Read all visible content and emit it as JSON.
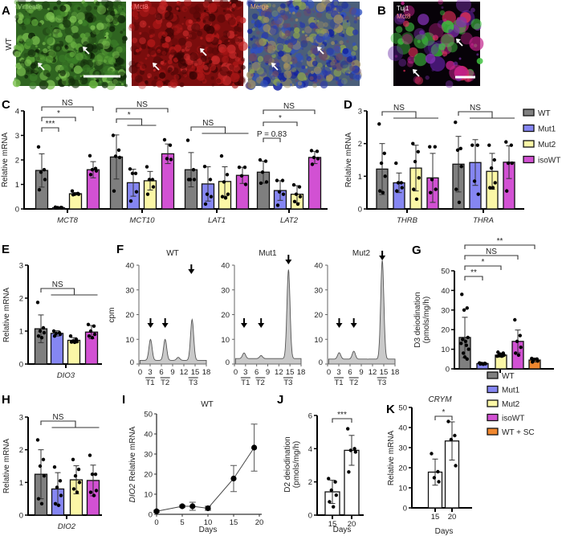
{
  "colors": {
    "WT": "#7f7f7f",
    "Mut1": "#8586f2",
    "Mut2": "#fbf7a6",
    "isoWT": "#d251d3",
    "WT + SC": "#f0872e"
  },
  "images": {
    "A": {
      "panel": "A",
      "row_label": "WT",
      "channels": [
        "Vimentin",
        "Mct8",
        "Merge"
      ]
    },
    "B": {
      "panel": "B",
      "channels": [
        "Tuj1",
        "Mct8"
      ]
    }
  },
  "chart_data": [
    {
      "panel": "C",
      "type": "bar",
      "ylabel": "Relative mRNA",
      "ylim": [
        0,
        4
      ],
      "yticks": [
        0,
        1,
        2,
        3,
        4
      ],
      "categories": [
        "MCT8",
        "MCT10",
        "LAT1",
        "LAT2"
      ],
      "series": [
        {
          "name": "WT",
          "values": [
            1.57,
            2.12,
            1.6,
            1.5
          ],
          "sd": [
            0.68,
            0.9,
            0.7,
            0.45
          ],
          "points": [
            [
              2.53,
              1.6,
              1.5,
              1.2,
              0.78
            ],
            [
              3.0,
              2.4,
              2.15,
              2.1,
              0.73
            ],
            [
              2.8,
              1.6,
              1.2,
              1.2,
              1.2
            ],
            [
              2.0,
              1.95,
              1.5,
              1.1,
              1.05
            ]
          ]
        },
        {
          "name": "Mut1",
          "values": [
            0.05,
            1.07,
            1.02,
            0.75
          ],
          "sd": [
            0.02,
            0.55,
            0.7,
            0.4
          ],
          "points": [
            [
              0.07,
              0.06,
              0.05,
              0.05,
              0.04
            ],
            [
              1.63,
              1.45,
              1.45,
              0.7,
              0.32
            ],
            [
              1.73,
              1.2,
              0.6,
              0.5,
              0.2
            ],
            [
              1.16,
              1.16,
              0.7,
              0.6,
              0.15
            ]
          ]
        },
        {
          "name": "Mut2",
          "values": [
            0.62,
            1.15,
            1.12,
            0.6
          ],
          "sd": [
            0.05,
            0.38,
            0.6,
            0.35
          ],
          "points": [
            [
              0.73,
              0.63,
              0.6,
              0.6,
              0.58
            ],
            [
              1.72,
              1.2,
              1.2,
              0.9,
              0.6
            ],
            [
              2.16,
              1.4,
              1.1,
              0.6,
              0.5,
              0.45
            ],
            [
              0.98,
              0.9,
              0.6,
              0.5,
              0.3,
              0.2
            ]
          ]
        },
        {
          "name": "isoWT",
          "values": [
            1.6,
            2.25,
            1.37,
            2.1
          ],
          "sd": [
            0.33,
            0.4,
            0.33,
            0.25
          ],
          "points": [
            [
              2.17,
              1.65,
              1.6,
              1.55,
              1.4
            ],
            [
              2.82,
              2.6,
              2.05,
              2.02
            ],
            [
              1.7,
              1.7,
              1.35,
              1.0
            ],
            [
              2.38,
              2.35,
              2.1,
              2.05,
              1.82
            ]
          ]
        }
      ],
      "comparisons": [
        {
          "category": "MCT8",
          "a": "WT",
          "b": [
            "Mut1"
          ],
          "label": "***"
        },
        {
          "category": "MCT8",
          "a": "WT",
          "b": [
            "Mut2"
          ],
          "label": "*"
        },
        {
          "category": "MCT8",
          "a": "WT",
          "b": [
            "isoWT"
          ],
          "label": "NS"
        },
        {
          "category": "MCT10",
          "a": "WT",
          "b": [
            "Mut1",
            "Mut2"
          ],
          "label": "*"
        },
        {
          "category": "MCT10",
          "a": "WT",
          "b": [
            "isoWT"
          ],
          "label": "NS"
        },
        {
          "category": "LAT1",
          "a": "WT",
          "b": [
            "Mut1",
            "Mut2",
            "isoWT"
          ],
          "label": "NS"
        },
        {
          "category": "LAT2",
          "a": "WT",
          "b": [
            "Mut1"
          ],
          "label": "P = 0.83"
        },
        {
          "category": "LAT2",
          "a": "WT",
          "b": [
            "Mut2"
          ],
          "label": "*"
        },
        {
          "category": "LAT2",
          "a": "WT",
          "b": [
            "isoWT"
          ],
          "label": "NS"
        }
      ]
    },
    {
      "panel": "D",
      "type": "bar",
      "ylabel": "Relative mRNA",
      "ylim": [
        0,
        3
      ],
      "yticks": [
        0,
        1,
        2,
        3
      ],
      "categories": [
        "THRB",
        "THRA"
      ],
      "legend": [
        "WT",
        "Mut1",
        "Mut2",
        "isoWT"
      ],
      "legend_position": "right",
      "series": [
        {
          "name": "WT",
          "values": [
            1.22,
            1.37
          ],
          "sd": [
            0.78,
            0.85
          ],
          "points": [
            [
              2.6,
              1.7,
              1.4,
              1.0,
              0.55,
              0.5
            ],
            [
              2.65,
              1.85,
              1.8,
              1.3,
              0.6,
              0.2
            ]
          ]
        },
        {
          "name": "Mut1",
          "values": [
            0.8,
            1.42
          ],
          "sd": [
            0.3,
            0.7
          ],
          "points": [
            [
              1.4,
              0.8,
              0.8,
              0.65,
              0.55
            ],
            [
              1.95,
              1.95,
              0.85,
              0.45
            ]
          ]
        },
        {
          "name": "Mut2",
          "values": [
            1.25,
            1.15
          ],
          "sd": [
            0.7,
            0.55
          ],
          "points": [
            [
              2.0,
              1.75,
              1.45,
              0.95,
              0.6,
              0.3
            ],
            [
              1.95,
              1.5,
              1.25,
              0.8,
              0.65,
              0.65
            ]
          ]
        },
        {
          "name": "isoWT",
          "values": [
            0.95,
            1.43
          ],
          "sd": [
            0.75,
            0.5
          ],
          "points": [
            [
              1.9,
              1.9,
              0.9,
              0.6,
              0.5
            ],
            [
              2.05,
              1.95,
              1.4,
              1.4,
              0.55
            ]
          ]
        }
      ],
      "comparisons": [
        {
          "category": "THRB",
          "a": "WT",
          "b": [
            "Mut1",
            "Mut2",
            "isoWT"
          ],
          "label": "NS"
        },
        {
          "category": "THRA",
          "a": "WT",
          "b": [
            "Mut1",
            "Mut2",
            "isoWT"
          ],
          "label": "NS"
        }
      ]
    },
    {
      "panel": "E",
      "type": "bar",
      "ylabel": "Relative mRNA",
      "ylim": [
        0,
        3
      ],
      "yticks": [
        0,
        1,
        2,
        3
      ],
      "categories": [
        "DIO3"
      ],
      "series": [
        {
          "name": "WT",
          "values": [
            1.07
          ],
          "sd": [
            0.42
          ],
          "points": [
            [
              1.87,
              1.1,
              1.0,
              0.95,
              0.85,
              0.8
            ]
          ]
        },
        {
          "name": "Mut1",
          "values": [
            0.93
          ],
          "sd": [
            0.08
          ],
          "points": [
            [
              1.0,
              0.95,
              0.93,
              0.9,
              0.85
            ]
          ]
        },
        {
          "name": "Mut2",
          "values": [
            0.72
          ],
          "sd": [
            0.08
          ],
          "points": [
            [
              0.85,
              0.75,
              0.7,
              0.68,
              0.67,
              0.66
            ]
          ]
        },
        {
          "name": "isoWT",
          "values": [
            0.97
          ],
          "sd": [
            0.2
          ],
          "points": [
            [
              1.2,
              1.15,
              1.0,
              0.9,
              0.85,
              0.8
            ]
          ]
        }
      ],
      "comparisons": [
        {
          "category": "DIO3",
          "a": "WT",
          "b": [
            "Mut1",
            "Mut2",
            "isoWT"
          ],
          "label": "NS"
        }
      ]
    },
    {
      "panel": "F",
      "type": "area",
      "ylabel": "cpm",
      "ylim": [
        0,
        40
      ],
      "yticks": [
        0,
        10,
        20,
        30,
        40
      ],
      "xlim": [
        0,
        18
      ],
      "xticks": [
        0,
        3,
        6,
        9,
        12,
        15,
        18
      ],
      "subplots": [
        {
          "title": "WT",
          "baseline": 1.5,
          "peaks": [
            {
              "retention": 3.1,
              "cpm": 8.5
            },
            {
              "retention": 7.0,
              "cpm": 8.5
            },
            {
              "retention": 10.5,
              "cpm": 1.2
            },
            {
              "retention": 14.2,
              "cpm": 16.5
            }
          ],
          "arrows": [
            3.1,
            7.0,
            14.0
          ],
          "fractions": [
            {
              "label": "T1",
              "retention": 3
            },
            {
              "label": "T2",
              "retention": 7
            },
            {
              "label": "T3",
              "retention": 14.5
            }
          ]
        },
        {
          "title": "Mut1",
          "baseline": 2.2,
          "peaks": [
            {
              "retention": 2.6,
              "cpm": 2.3
            },
            {
              "retention": 7.2,
              "cpm": 1.2
            },
            {
              "retention": 14.6,
              "cpm": 36
            }
          ],
          "arrows": [
            2.6,
            7.2,
            14.6
          ],
          "fractions": [
            {
              "label": "T1",
              "retention": 3
            },
            {
              "label": "T2",
              "retention": 7
            },
            {
              "label": "T3",
              "retention": 14.5
            }
          ]
        },
        {
          "title": "Mut2",
          "baseline": 2,
          "peaks": [
            {
              "retention": 3.1,
              "cpm": 2.6
            },
            {
              "retention": 7.0,
              "cpm": 3.2
            },
            {
              "retention": 14.6,
              "cpm": 40
            }
          ],
          "arrows": [
            3.1,
            7.0,
            14.6
          ],
          "fractions": [
            {
              "label": "T1",
              "retention": 3
            },
            {
              "label": "T2",
              "retention": 7
            },
            {
              "label": "T3",
              "retention": 14.5
            }
          ]
        }
      ]
    },
    {
      "panel": "G",
      "type": "bar",
      "ylabel": [
        "D3 deiodination",
        "(pmols/mg/h)"
      ],
      "ylim": [
        0,
        50
      ],
      "yticks": [
        0,
        10,
        20,
        30,
        40,
        50
      ],
      "categories": [
        ""
      ],
      "legend": [
        "WT",
        "Mut1",
        "Mut2",
        "isoWT",
        "WT + SC"
      ],
      "legend_position": "bottom-right",
      "series": [
        {
          "name": "WT",
          "values": [
            16
          ],
          "sd": [
            10.3
          ],
          "points": [
            [
              38,
              31,
              30,
              16,
              15,
              14,
              13,
              12,
              10,
              8,
              6,
              5
            ]
          ]
        },
        {
          "name": "Mut1",
          "values": [
            2.7
          ],
          "sd": [
            0.5
          ],
          "points": [
            [
              3,
              2.8,
              2.7,
              2.6,
              2.5,
              2.4
            ]
          ]
        },
        {
          "name": "Mut2",
          "values": [
            7
          ],
          "sd": [
            1
          ],
          "points": [
            [
              8.5,
              8,
              7.5,
              7,
              6.8,
              6.5,
              6.5
            ]
          ]
        },
        {
          "name": "isoWT",
          "values": [
            14
          ],
          "sd": [
            5.8
          ],
          "points": [
            [
              25,
              17,
              14,
              11,
              8,
              7
            ]
          ]
        },
        {
          "name": "WT + SC",
          "values": [
            4.5
          ],
          "sd": [
            1
          ],
          "points": [
            [
              5.3,
              5,
              4.8,
              4,
              3.5
            ]
          ]
        }
      ],
      "comparisons": [
        {
          "category": "",
          "a": "WT",
          "b": [
            "Mut1"
          ],
          "label": "**"
        },
        {
          "category": "",
          "a": "WT",
          "b": [
            "Mut2"
          ],
          "label": "*"
        },
        {
          "category": "",
          "a": "WT",
          "b": [
            "isoWT"
          ],
          "label": "NS"
        },
        {
          "category": "",
          "a": "WT",
          "b": [
            "WT + SC"
          ],
          "label": "**"
        }
      ]
    },
    {
      "panel": "H",
      "type": "bar",
      "ylabel": "Relative mRNA",
      "ylim": [
        0,
        3
      ],
      "yticks": [
        0,
        1,
        2,
        3
      ],
      "categories": [
        "DIO2"
      ],
      "series": [
        {
          "name": "WT",
          "values": [
            1.25
          ],
          "sd": [
            0.75
          ],
          "points": [
            [
              2.3,
              1.7,
              1.5,
              1.2,
              0.5,
              0.35
            ]
          ]
        },
        {
          "name": "Mut1",
          "values": [
            0.8
          ],
          "sd": [
            0.5
          ],
          "points": [
            [
              1.47,
              1.05,
              0.85,
              0.6,
              0.35,
              0.3
            ]
          ]
        },
        {
          "name": "Mut2",
          "values": [
            1.08
          ],
          "sd": [
            0.43
          ],
          "points": [
            [
              1.7,
              1.4,
              1.2,
              1.0,
              0.8,
              0.7
            ]
          ]
        },
        {
          "name": "isoWT",
          "values": [
            1.06
          ],
          "sd": [
            0.47
          ],
          "points": [
            [
              1.83,
              1.25,
              1.25,
              0.75,
              0.7,
              0.6
            ]
          ]
        }
      ],
      "comparisons": [
        {
          "category": "DIO2",
          "a": "WT",
          "b": [
            "Mut1",
            "Mut2",
            "isoWT"
          ],
          "label": "NS"
        }
      ]
    },
    {
      "panel": "I",
      "type": "line",
      "title": "WT",
      "ylabel_gene": "DIO2",
      "ylabel": "Relative mRNA",
      "xlabel": "Days",
      "xlim": [
        0,
        20
      ],
      "xticks": [
        0,
        5,
        10,
        15,
        20
      ],
      "ylim": [
        0,
        50
      ],
      "yticks": [
        0,
        10,
        20,
        30,
        40,
        50
      ],
      "x": [
        0,
        5,
        7,
        10,
        15,
        19
      ],
      "y": [
        1.5,
        4,
        4,
        3,
        17.8,
        33.2
      ],
      "err": [
        0.5,
        0.5,
        2,
        1,
        6.5,
        11.7
      ]
    },
    {
      "panel": "J",
      "type": "bar",
      "ylabel": [
        "D2 deiodination",
        "(pmols/mg/h)"
      ],
      "xlabel": "Days",
      "ylim": [
        0,
        6
      ],
      "yticks": [
        0,
        2,
        4,
        6
      ],
      "categories": [
        "15",
        "20"
      ],
      "series": [
        {
          "name": "",
          "values": [
            1.4,
            3.9
          ],
          "sd": [
            0.7,
            0.9
          ],
          "points": [
            [
              2.2,
              2.0,
              1.5,
              1.2,
              0.8,
              0.5
            ],
            [
              5.2,
              4.0,
              3.9,
              3.8,
              2.6
            ]
          ]
        }
      ],
      "comparisons": [
        {
          "a": "15",
          "b": [
            "20"
          ],
          "label": "***"
        }
      ]
    },
    {
      "panel": "K",
      "type": "bar",
      "title": "CRYM",
      "ylabel": "Relative mRNA",
      "xlabel": "Days",
      "ylim": [
        0,
        50
      ],
      "yticks": [
        0,
        10,
        20,
        30,
        40,
        50
      ],
      "categories": [
        "15",
        "20"
      ],
      "series": [
        {
          "name": "",
          "values": [
            17.8,
            33.3
          ],
          "sd": [
            6.5,
            9.5
          ],
          "points": [
            [
              27,
              18,
              15,
              13
            ],
            [
              43,
              36,
              34,
              21
            ]
          ]
        }
      ],
      "comparisons": [
        {
          "a": "15",
          "b": [
            "20"
          ],
          "label": "*"
        }
      ]
    }
  ]
}
